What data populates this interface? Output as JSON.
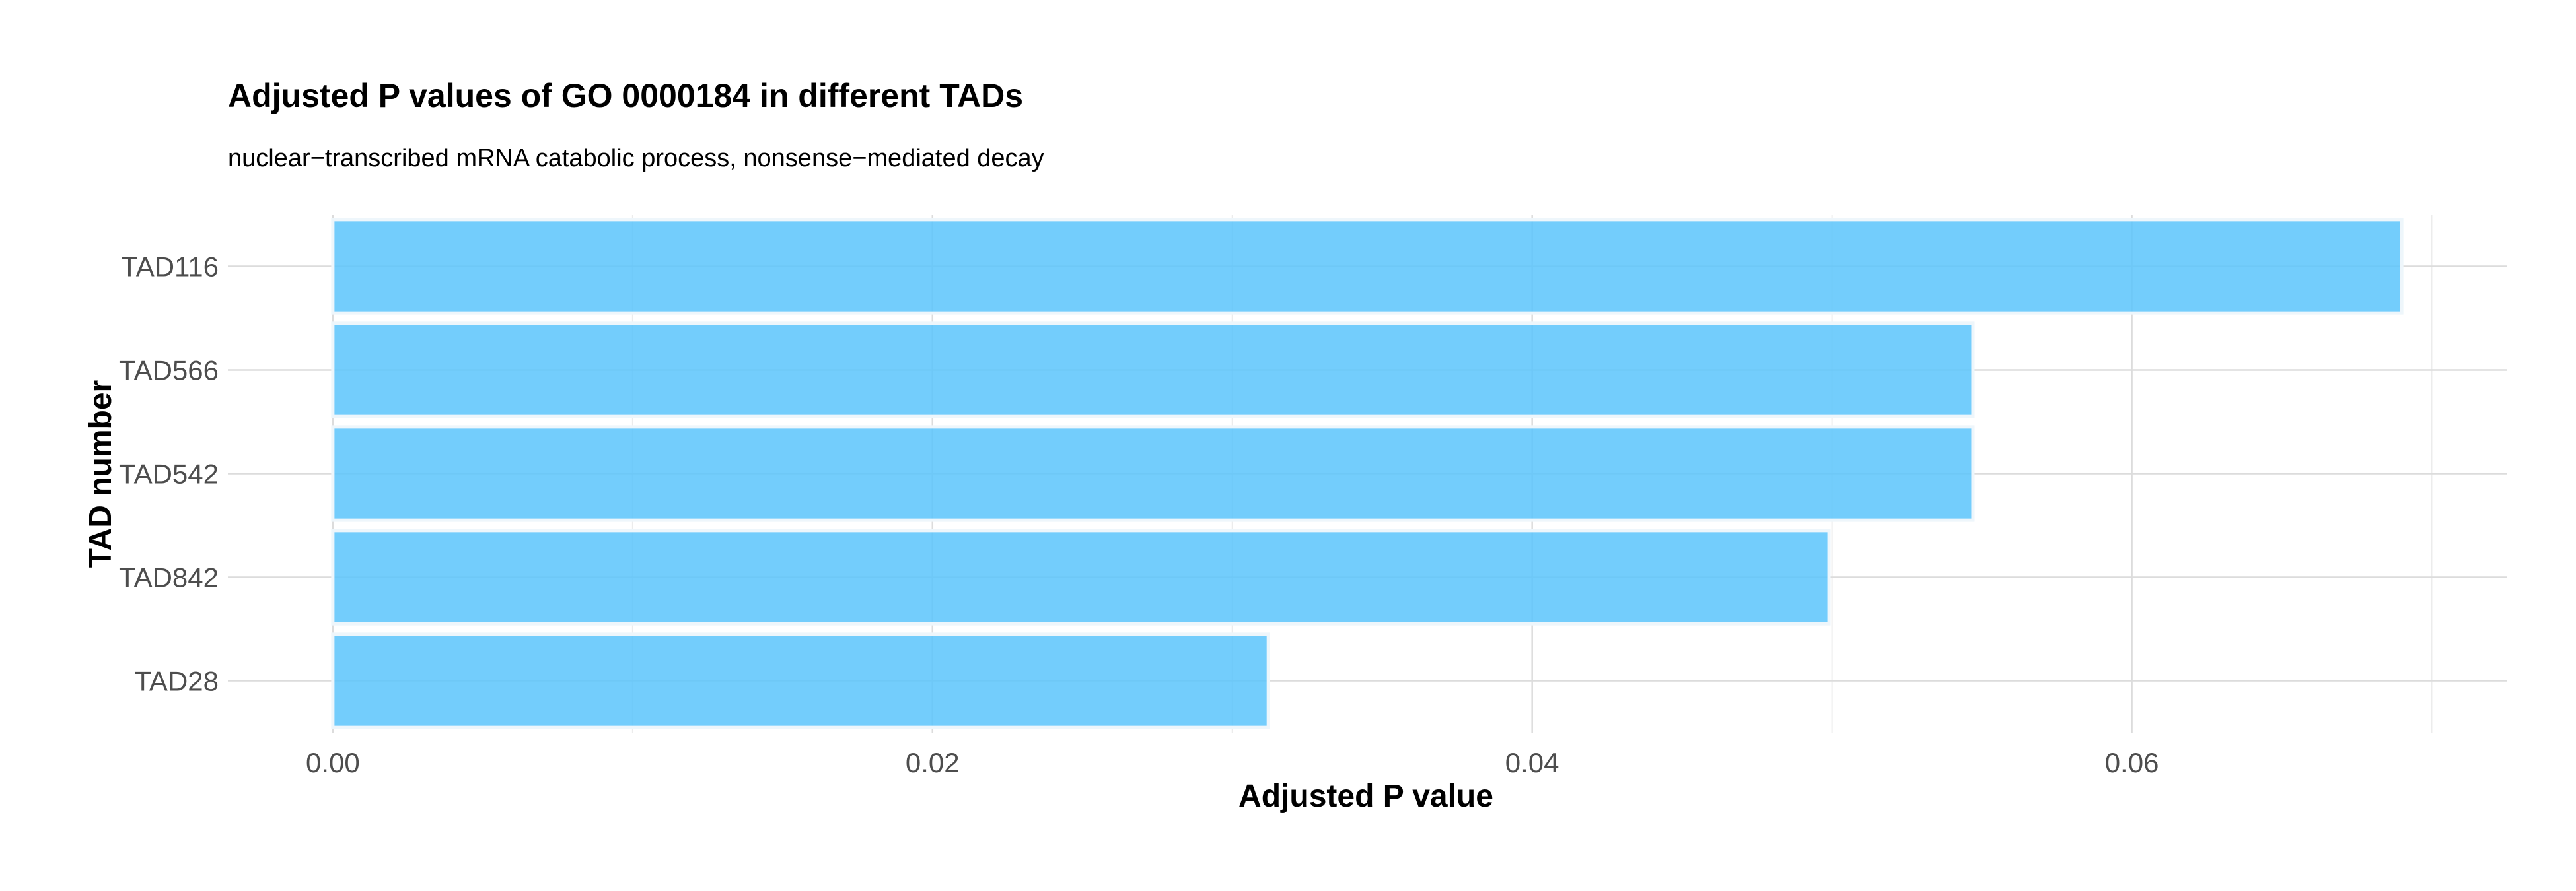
{
  "chart_data": {
    "type": "bar",
    "orientation": "horizontal",
    "title": "Adjusted P values of GO 0000184 in different TADs",
    "subtitle": "nuclear−transcribed mRNA catabolic process, nonsense−mediated decay",
    "xlabel": "Adjusted P value",
    "ylabel": "TAD number",
    "categories": [
      "TAD116",
      "TAD566",
      "TAD542",
      "TAD842",
      "TAD28"
    ],
    "values": [
      0.069,
      0.0547,
      0.0547,
      0.0499,
      0.0312
    ],
    "xlim": [
      -0.0035,
      0.0725
    ],
    "x_ticks": [
      0.0,
      0.02,
      0.04,
      0.06
    ],
    "x_tick_labels": [
      "0.00",
      "0.02",
      "0.04",
      "0.06"
    ],
    "x_minor_ticks": [
      0.01,
      0.03,
      0.05,
      0.07
    ],
    "grid": true,
    "bar_color": "#5bc4fb"
  }
}
